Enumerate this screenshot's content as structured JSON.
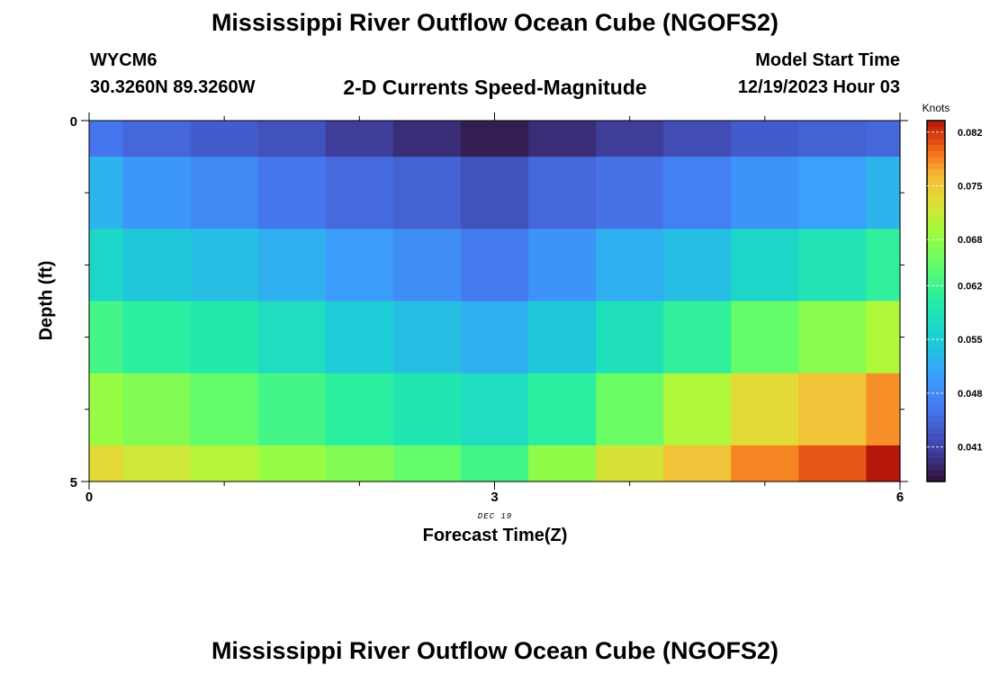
{
  "page_title": "Mississippi River Outflow Ocean Cube (NGOFS2)",
  "station": {
    "id": "WYCM6",
    "coords": "30.3260N  89.3260W"
  },
  "model": {
    "label": "Model Start Time",
    "start": "12/19/2023 Hour 03"
  },
  "subtitle": "2-D Currents Speed-Magnitude",
  "footer_title": "Mississippi River Outflow Ocean Cube (NGOFS2)",
  "chart_data": {
    "type": "heatmap",
    "title": "2-D Currents Speed-Magnitude",
    "xlabel": "Forecast Time(Z)",
    "ylabel": "Depth (ft)",
    "date_label": "DEC 19",
    "xlim": [
      0,
      6
    ],
    "ylim": [
      0,
      5
    ],
    "x_ticks": [
      "0",
      "3",
      "6"
    ],
    "y_ticks": [
      "0",
      "5"
    ],
    "x_centers": [
      0,
      0.5,
      1,
      1.5,
      2,
      2.5,
      3,
      3.5,
      4,
      4.5,
      5,
      5.5,
      6
    ],
    "depth_bands": [
      {
        "top": 0.0,
        "bottom": 0.5
      },
      {
        "top": 0.5,
        "bottom": 1.5
      },
      {
        "top": 1.5,
        "bottom": 2.5
      },
      {
        "top": 2.5,
        "bottom": 3.5
      },
      {
        "top": 3.5,
        "bottom": 4.5
      },
      {
        "top": 4.5,
        "bottom": 5.0
      }
    ],
    "values": [
      [
        0.046,
        0.0445,
        0.0435,
        0.0425,
        0.0405,
        0.039,
        0.0375,
        0.039,
        0.0405,
        0.042,
        0.0435,
        0.044,
        0.0445
      ],
      [
        0.0525,
        0.0495,
        0.048,
        0.046,
        0.0448,
        0.044,
        0.0425,
        0.0445,
        0.0455,
        0.047,
        0.049,
        0.0505,
        0.0525
      ],
      [
        0.0565,
        0.0545,
        0.0535,
        0.052,
        0.05,
        0.0485,
        0.0465,
        0.049,
        0.052,
        0.0535,
        0.0565,
        0.0585,
        0.061
      ],
      [
        0.0625,
        0.0605,
        0.0595,
        0.0575,
        0.055,
        0.0535,
        0.052,
        0.0545,
        0.058,
        0.061,
        0.065,
        0.0675,
        0.07
      ],
      [
        0.0685,
        0.067,
        0.065,
        0.0625,
        0.0605,
        0.059,
        0.0575,
        0.0605,
        0.0655,
        0.07,
        0.0735,
        0.0755,
        0.078
      ],
      [
        0.0735,
        0.072,
        0.0705,
        0.0685,
        0.067,
        0.065,
        0.0625,
        0.068,
        0.0725,
        0.0755,
        0.0785,
        0.0805,
        0.0835
      ]
    ],
    "colorbar": {
      "label": "Knots",
      "min": 0.0365,
      "max": 0.0835,
      "ticks": [
        "0.082",
        "0.075",
        "0.068",
        "0.062",
        "0.055",
        "0.048",
        "0.041"
      ],
      "tick_values": [
        0.082,
        0.075,
        0.068,
        0.062,
        0.055,
        0.048,
        0.041
      ]
    }
  }
}
